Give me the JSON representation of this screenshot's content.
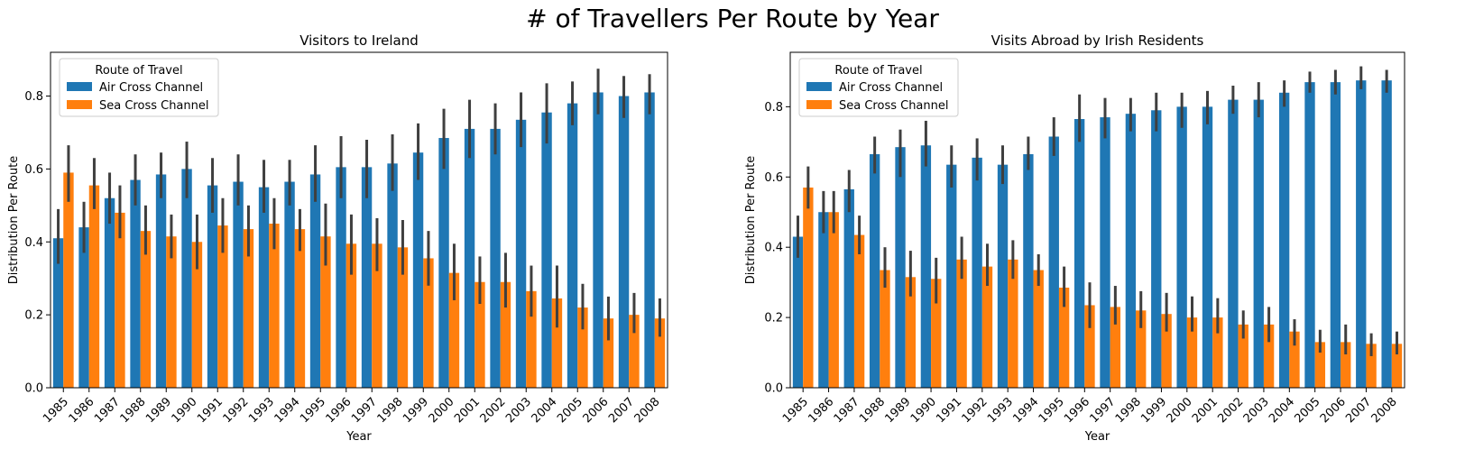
{
  "suptitle": "# of Travellers Per Route by Year",
  "chart_data": [
    {
      "type": "bar",
      "title": "Visitors to Ireland",
      "xlabel": "Year",
      "ylabel": "Distribution Per Route",
      "ylim": [
        0,
        0.92
      ],
      "yticks": [
        "0.0",
        "0.2",
        "0.4",
        "0.6",
        "0.8"
      ],
      "legend_title": "Route of Travel",
      "legend_loc": "upper left",
      "categories": [
        "1985",
        "1986",
        "1987",
        "1988",
        "1989",
        "1990",
        "1991",
        "1992",
        "1993",
        "1994",
        "1995",
        "1996",
        "1997",
        "1998",
        "1999",
        "2000",
        "2001",
        "2002",
        "2003",
        "2004",
        "2005",
        "2006",
        "2007",
        "2008"
      ],
      "series": [
        {
          "name": "Air Cross Channel",
          "color": "#1f77b4",
          "values": [
            0.41,
            0.44,
            0.52,
            0.57,
            0.585,
            0.6,
            0.555,
            0.565,
            0.55,
            0.565,
            0.585,
            0.605,
            0.605,
            0.615,
            0.645,
            0.685,
            0.71,
            0.71,
            0.735,
            0.755,
            0.78,
            0.81,
            0.8,
            0.81
          ],
          "ci_low": [
            0.34,
            0.37,
            0.45,
            0.5,
            0.52,
            0.52,
            0.48,
            0.5,
            0.48,
            0.5,
            0.51,
            0.52,
            0.52,
            0.54,
            0.57,
            0.6,
            0.63,
            0.64,
            0.66,
            0.67,
            0.72,
            0.75,
            0.74,
            0.75
          ],
          "ci_high": [
            0.49,
            0.51,
            0.59,
            0.64,
            0.645,
            0.675,
            0.63,
            0.64,
            0.625,
            0.625,
            0.665,
            0.69,
            0.68,
            0.695,
            0.725,
            0.765,
            0.79,
            0.78,
            0.81,
            0.835,
            0.84,
            0.875,
            0.855,
            0.86
          ]
        },
        {
          "name": "Sea Cross Channel",
          "color": "#ff7f0e",
          "values": [
            0.59,
            0.555,
            0.48,
            0.43,
            0.415,
            0.4,
            0.445,
            0.435,
            0.45,
            0.435,
            0.415,
            0.395,
            0.395,
            0.385,
            0.355,
            0.315,
            0.29,
            0.29,
            0.265,
            0.245,
            0.22,
            0.19,
            0.2,
            0.19
          ],
          "ci_low": [
            0.51,
            0.49,
            0.41,
            0.365,
            0.355,
            0.325,
            0.37,
            0.36,
            0.38,
            0.375,
            0.335,
            0.31,
            0.32,
            0.31,
            0.28,
            0.24,
            0.23,
            0.22,
            0.195,
            0.165,
            0.16,
            0.13,
            0.15,
            0.14
          ],
          "ci_high": [
            0.665,
            0.63,
            0.555,
            0.5,
            0.475,
            0.475,
            0.52,
            0.5,
            0.52,
            0.49,
            0.505,
            0.475,
            0.465,
            0.46,
            0.43,
            0.395,
            0.36,
            0.37,
            0.335,
            0.335,
            0.285,
            0.25,
            0.26,
            0.245
          ]
        }
      ]
    },
    {
      "type": "bar",
      "title": "Visits Abroad by Irish Residents",
      "xlabel": "Year",
      "ylabel": "Distribution Per Route",
      "ylim": [
        0,
        0.955
      ],
      "yticks": [
        "0.0",
        "0.2",
        "0.4",
        "0.6",
        "0.8"
      ],
      "legend_title": "Route of Travel",
      "legend_loc": "upper left",
      "categories": [
        "1985",
        "1986",
        "1987",
        "1988",
        "1989",
        "1990",
        "1991",
        "1992",
        "1993",
        "1994",
        "1995",
        "1996",
        "1997",
        "1998",
        "1999",
        "2000",
        "2001",
        "2002",
        "2003",
        "2004",
        "2005",
        "2006",
        "2007",
        "2008"
      ],
      "series": [
        {
          "name": "Air Cross Channel",
          "color": "#1f77b4",
          "values": [
            0.43,
            0.5,
            0.565,
            0.665,
            0.685,
            0.69,
            0.635,
            0.655,
            0.635,
            0.665,
            0.715,
            0.765,
            0.77,
            0.78,
            0.79,
            0.8,
            0.8,
            0.82,
            0.82,
            0.84,
            0.87,
            0.87,
            0.875,
            0.875
          ],
          "ci_low": [
            0.37,
            0.44,
            0.5,
            0.61,
            0.6,
            0.63,
            0.57,
            0.59,
            0.58,
            0.62,
            0.66,
            0.7,
            0.71,
            0.73,
            0.73,
            0.74,
            0.75,
            0.78,
            0.77,
            0.8,
            0.84,
            0.835,
            0.85,
            0.84
          ],
          "ci_high": [
            0.49,
            0.56,
            0.62,
            0.715,
            0.735,
            0.76,
            0.69,
            0.71,
            0.69,
            0.715,
            0.77,
            0.835,
            0.825,
            0.825,
            0.84,
            0.84,
            0.845,
            0.86,
            0.87,
            0.875,
            0.9,
            0.905,
            0.915,
            0.905
          ]
        },
        {
          "name": "Sea Cross Channel",
          "color": "#ff7f0e",
          "values": [
            0.57,
            0.5,
            0.435,
            0.335,
            0.315,
            0.31,
            0.365,
            0.345,
            0.365,
            0.335,
            0.285,
            0.235,
            0.23,
            0.22,
            0.21,
            0.2,
            0.2,
            0.18,
            0.18,
            0.16,
            0.13,
            0.13,
            0.125,
            0.125
          ],
          "ci_low": [
            0.51,
            0.44,
            0.38,
            0.285,
            0.26,
            0.24,
            0.31,
            0.29,
            0.31,
            0.29,
            0.23,
            0.17,
            0.18,
            0.17,
            0.16,
            0.16,
            0.155,
            0.14,
            0.13,
            0.12,
            0.1,
            0.095,
            0.09,
            0.095
          ],
          "ci_high": [
            0.63,
            0.56,
            0.49,
            0.4,
            0.39,
            0.37,
            0.43,
            0.41,
            0.42,
            0.38,
            0.345,
            0.3,
            0.29,
            0.275,
            0.27,
            0.26,
            0.255,
            0.22,
            0.23,
            0.195,
            0.165,
            0.18,
            0.155,
            0.16
          ]
        }
      ]
    }
  ]
}
